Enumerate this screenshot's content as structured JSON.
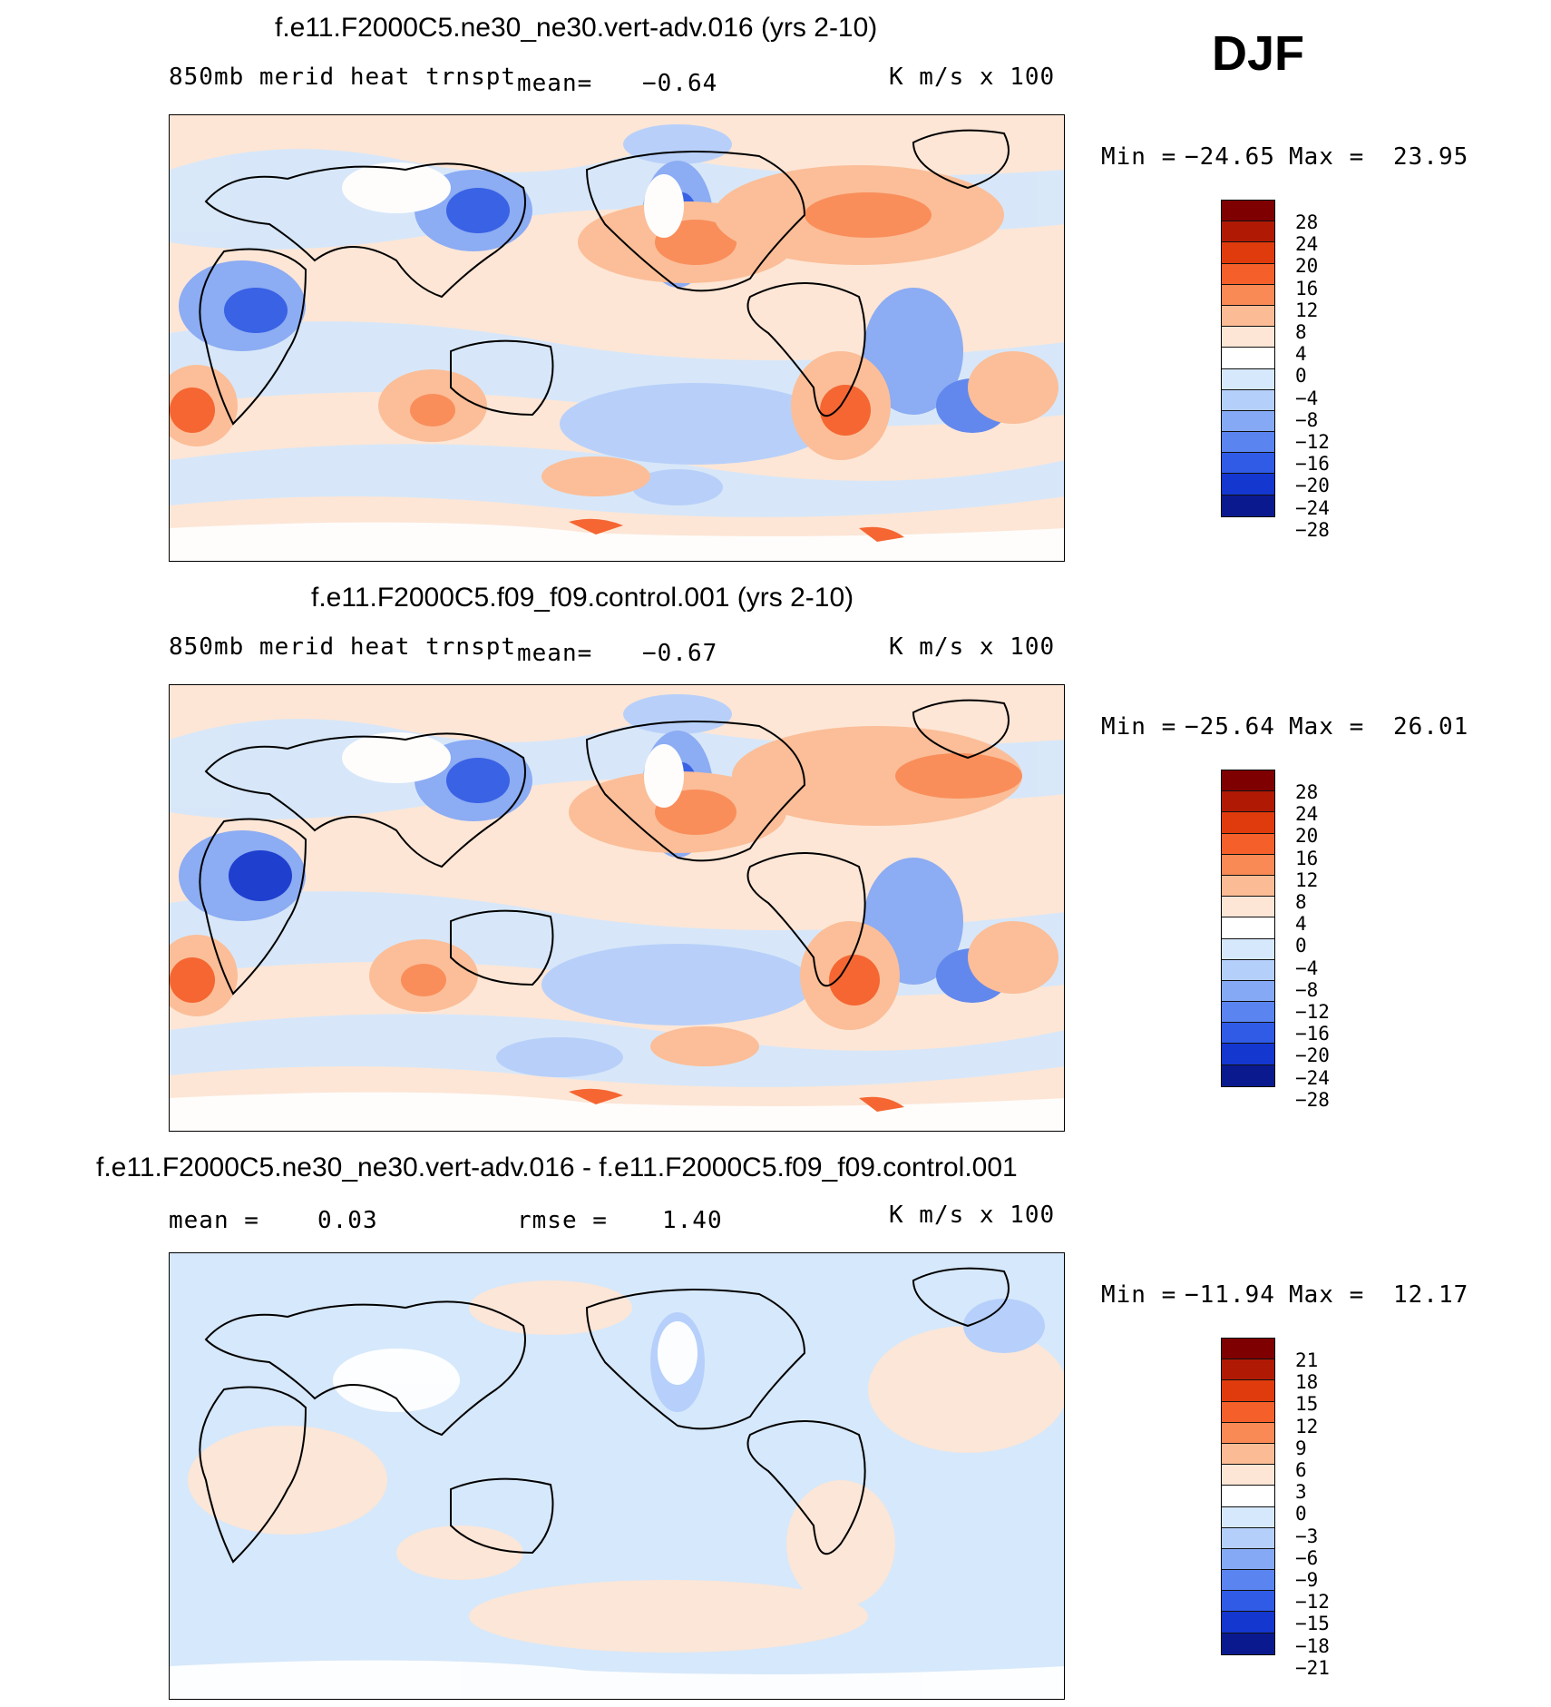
{
  "season": "DJF",
  "panels": [
    {
      "title": "f.e11.F2000C5.ne30_ne30.vert-adv.016 (yrs 2-10)",
      "left_label": "850mb merid heat trnspt",
      "mean_label": "mean=",
      "mean_value": "−0.64",
      "units": "K m/s x 100",
      "min_label": "Min =",
      "min_value": "−24.65",
      "max_label": "Max =",
      "max_value": "23.95",
      "levels": [
        "28",
        "24",
        "20",
        "16",
        "12",
        "8",
        "4",
        "0",
        "−4",
        "−8",
        "−12",
        "−16",
        "−20",
        "−24",
        "−28"
      ]
    },
    {
      "title": "f.e11.F2000C5.f09_f09.control.001 (yrs 2-10)",
      "left_label": "850mb merid heat trnspt",
      "mean_label": "mean=",
      "mean_value": "−0.67",
      "units": "K m/s x 100",
      "min_label": "Min =",
      "min_value": "−25.64",
      "max_label": "Max =",
      "max_value": "26.01",
      "levels": [
        "28",
        "24",
        "20",
        "16",
        "12",
        "8",
        "4",
        "0",
        "−4",
        "−8",
        "−12",
        "−16",
        "−20",
        "−24",
        "−28"
      ]
    },
    {
      "title": "f.e11.F2000C5.ne30_ne30.vert-adv.016 - f.e11.F2000C5.f09_f09.control.001",
      "mean_label": "mean =",
      "mean_value": "0.03",
      "rmse_label": "rmse =",
      "rmse_value": "1.40",
      "units": "K m/s x 100",
      "min_label": "Min =",
      "min_value": "−11.94",
      "max_label": "Max =",
      "max_value": "12.17",
      "levels": [
        "21",
        "18",
        "15",
        "12",
        "9",
        "6",
        "3",
        "0",
        "−3",
        "−6",
        "−9",
        "−12",
        "−15",
        "−18",
        "−21"
      ]
    }
  ],
  "colors": {
    "scale": [
      "#7f0000",
      "#b01a05",
      "#e03b0c",
      "#f5602a",
      "#f98a55",
      "#fbbc95",
      "#fde6d6",
      "#ffffff",
      "#d6e8fb",
      "#b5cffb",
      "#86a9f5",
      "#5a84ef",
      "#2f5be6",
      "#1437cf",
      "#0a1a8e"
    ],
    "land_outline": "#000000",
    "missing": "#ffffff"
  }
}
